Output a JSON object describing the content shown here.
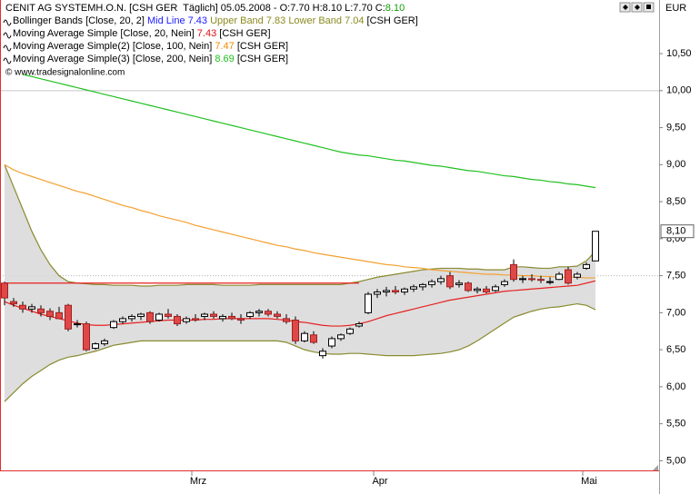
{
  "chart_data": {
    "type": "candlestick",
    "currency": "EUR",
    "legend": [
      {
        "parts": [
          {
            "text": "CENIT AG SYSTEMH.O.N. [CSH GER  Täglich] 05.05.2008 - O:7.70 H:8.10 L:7.70 C:",
            "color": "#000000"
          },
          {
            "text": "8.10",
            "color": "#10a010"
          }
        ]
      },
      {
        "parts": [
          {
            "text": "Bollinger Bands [Close, 20, 2] ",
            "color": "#000000"
          },
          {
            "text": "Mid Line 7.43",
            "color": "#1a1aff"
          },
          {
            "text": " Upper Band 7.83 Lower Band 7.04",
            "color": "#8a8a20"
          },
          {
            "text": " [CSH GER]",
            "color": "#000000"
          }
        ]
      },
      {
        "parts": [
          {
            "text": "Moving Average Simple [Close, 20, Nein] ",
            "color": "#000000"
          },
          {
            "text": "7.43",
            "color": "#e01010"
          },
          {
            "text": " [CSH GER]",
            "color": "#000000"
          }
        ]
      },
      {
        "parts": [
          {
            "text": "Moving Average Simple(2) [Close, 100, Nein] ",
            "color": "#000000"
          },
          {
            "text": "7.47",
            "color": "#f08a00"
          },
          {
            "text": " [CSH GER]",
            "color": "#000000"
          }
        ]
      },
      {
        "parts": [
          {
            "text": "Moving Average Simple(3) [Close, 200, Nein] ",
            "color": "#000000"
          },
          {
            "text": "8.69",
            "color": "#20c020"
          },
          {
            "text": " [CSH GER]",
            "color": "#000000"
          }
        ]
      }
    ],
    "copyright": "© www.tradesignalonline.com",
    "categories": [
      null,
      null,
      null,
      null,
      null,
      null,
      null,
      null,
      null,
      null,
      null,
      null,
      null,
      null,
      null,
      null,
      null,
      null,
      null,
      null,
      null,
      "Mrz",
      null,
      null,
      null,
      null,
      null,
      null,
      null,
      null,
      null,
      null,
      null,
      null,
      null,
      null,
      null,
      null,
      null,
      null,
      null,
      "Apr",
      null,
      null,
      null,
      null,
      null,
      null,
      null,
      null,
      null,
      null,
      null,
      null,
      null,
      null,
      null,
      null,
      null,
      null,
      null,
      null,
      null,
      null,
      "Mai",
      null
    ],
    "open": [
      7.4,
      7.15,
      7.1,
      7.05,
      7.05,
      7.02,
      7.0,
      7.1,
      6.85,
      6.85,
      6.52,
      6.58,
      6.8,
      6.88,
      6.92,
      6.95,
      7.0,
      6.9,
      6.98,
      6.95,
      6.88,
      6.92,
      6.95,
      6.98,
      6.92,
      6.95,
      6.92,
      6.95,
      7.0,
      7.02,
      6.98,
      6.92,
      6.9,
      6.62,
      6.7,
      6.42,
      6.55,
      6.65,
      6.72,
      6.82,
      7.0,
      7.25,
      7.28,
      7.3,
      7.28,
      7.32,
      7.35,
      7.38,
      7.42,
      7.5,
      7.38,
      7.4,
      7.3,
      7.32,
      7.3,
      7.38,
      7.65,
      7.45,
      7.46,
      7.45,
      7.42,
      7.45,
      7.58,
      7.48,
      7.6,
      7.7
    ],
    "high": [
      7.42,
      7.2,
      7.15,
      7.12,
      7.1,
      7.06,
      7.08,
      7.12,
      6.9,
      6.88,
      6.6,
      6.65,
      6.9,
      6.95,
      6.98,
      7.0,
      7.02,
      7.0,
      7.05,
      6.98,
      6.95,
      6.98,
      7.0,
      7.02,
      6.98,
      7.0,
      6.98,
      7.02,
      7.05,
      7.05,
      7.02,
      6.98,
      6.95,
      6.75,
      6.75,
      6.52,
      6.68,
      6.72,
      6.8,
      6.88,
      7.28,
      7.32,
      7.35,
      7.36,
      7.34,
      7.38,
      7.4,
      7.45,
      7.5,
      7.55,
      7.44,
      7.42,
      7.35,
      7.36,
      7.38,
      7.45,
      7.72,
      7.5,
      7.52,
      7.5,
      7.48,
      7.55,
      7.62,
      7.55,
      7.68,
      8.1
    ],
    "low": [
      7.1,
      7.08,
      7.0,
      7.0,
      6.95,
      6.9,
      6.92,
      6.75,
      6.8,
      6.48,
      6.5,
      6.55,
      6.78,
      6.85,
      6.88,
      6.9,
      6.85,
      6.88,
      6.92,
      6.82,
      6.85,
      6.88,
      6.9,
      6.92,
      6.88,
      6.9,
      6.85,
      6.92,
      6.95,
      6.95,
      6.92,
      6.85,
      6.58,
      6.6,
      6.58,
      6.38,
      6.52,
      6.62,
      6.7,
      6.8,
      6.98,
      7.2,
      7.22,
      7.25,
      7.24,
      7.28,
      7.3,
      7.34,
      7.38,
      7.32,
      7.34,
      7.28,
      7.26,
      7.26,
      7.28,
      7.35,
      7.42,
      7.4,
      7.42,
      7.4,
      7.38,
      7.44,
      7.38,
      7.45,
      7.58,
      7.7
    ],
    "close": [
      7.2,
      7.12,
      7.05,
      7.08,
      7.0,
      6.95,
      6.92,
      6.78,
      6.85,
      6.5,
      6.58,
      6.62,
      6.88,
      6.92,
      6.95,
      6.98,
      6.88,
      6.98,
      6.95,
      6.85,
      6.92,
      6.9,
      6.98,
      6.95,
      6.95,
      6.92,
      6.9,
      7.0,
      7.02,
      6.98,
      6.95,
      6.88,
      6.62,
      6.72,
      6.6,
      6.48,
      6.65,
      6.7,
      6.78,
      6.85,
      7.25,
      7.28,
      7.3,
      7.28,
      7.32,
      7.35,
      7.38,
      7.42,
      7.46,
      7.35,
      7.4,
      7.3,
      7.32,
      7.28,
      7.35,
      7.42,
      7.45,
      7.46,
      7.45,
      7.44,
      7.42,
      7.52,
      7.4,
      7.52,
      7.65,
      8.1
    ],
    "up_color": "#ffffff",
    "down_color": "#e04848",
    "band_color": "#d8d8d8",
    "band": {
      "color": "#8a8a30",
      "upper": [
        9.0,
        8.7,
        8.4,
        8.1,
        7.85,
        7.65,
        7.5,
        7.42,
        7.4,
        7.39,
        7.38,
        7.38,
        7.37,
        7.37,
        7.37,
        7.36,
        7.36,
        7.37,
        7.37,
        7.37,
        7.38,
        7.38,
        7.38,
        7.38,
        7.37,
        7.37,
        7.37,
        7.37,
        7.38,
        7.38,
        7.38,
        7.38,
        7.38,
        7.38,
        7.38,
        7.38,
        7.38,
        7.38,
        7.4,
        7.42,
        7.45,
        7.48,
        7.5,
        7.52,
        7.54,
        7.56,
        7.58,
        7.59,
        7.6,
        7.6,
        7.6,
        7.59,
        7.59,
        7.58,
        7.58,
        7.58,
        7.62,
        7.62,
        7.61,
        7.6,
        7.6,
        7.62,
        7.62,
        7.63,
        7.7,
        7.83
      ],
      "lower": [
        5.8,
        5.92,
        6.04,
        6.14,
        6.22,
        6.3,
        6.36,
        6.4,
        6.42,
        6.45,
        6.48,
        6.52,
        6.56,
        6.58,
        6.6,
        6.62,
        6.62,
        6.62,
        6.62,
        6.62,
        6.62,
        6.62,
        6.62,
        6.62,
        6.62,
        6.62,
        6.62,
        6.62,
        6.62,
        6.62,
        6.62,
        6.6,
        6.55,
        6.5,
        6.47,
        6.45,
        6.44,
        6.44,
        6.45,
        6.45,
        6.44,
        6.43,
        6.42,
        6.42,
        6.42,
        6.42,
        6.43,
        6.44,
        6.45,
        6.47,
        6.5,
        6.55,
        6.62,
        6.7,
        6.78,
        6.86,
        6.94,
        6.98,
        7.02,
        7.05,
        7.07,
        7.08,
        7.1,
        7.12,
        7.1,
        7.04
      ]
    },
    "overlays": [
      {
        "color": "#20c020",
        "values": [
          null,
          null,
          10.22,
          10.19,
          10.16,
          10.13,
          10.1,
          10.07,
          10.04,
          10.01,
          9.98,
          9.95,
          9.92,
          9.89,
          9.86,
          9.83,
          9.8,
          9.77,
          9.74,
          9.71,
          9.68,
          9.65,
          9.62,
          9.59,
          9.56,
          9.53,
          9.5,
          9.47,
          9.44,
          9.41,
          9.38,
          9.35,
          9.32,
          9.29,
          9.26,
          9.23,
          9.2,
          9.17,
          9.15,
          9.13,
          9.12,
          9.1,
          9.08,
          9.06,
          9.05,
          9.03,
          9.01,
          8.99,
          8.98,
          8.96,
          8.94,
          8.92,
          8.91,
          8.89,
          8.87,
          8.85,
          8.84,
          8.82,
          8.8,
          8.79,
          8.77,
          8.76,
          8.74,
          8.73,
          8.71,
          8.69
        ]
      },
      {
        "color": "#f5a030",
        "values": [
          9.0,
          8.93,
          8.88,
          8.84,
          8.8,
          8.76,
          8.72,
          8.68,
          8.64,
          8.61,
          8.57,
          8.53,
          8.49,
          8.45,
          8.42,
          8.38,
          8.35,
          8.31,
          8.28,
          8.25,
          8.22,
          8.18,
          8.15,
          8.12,
          8.09,
          8.06,
          8.03,
          8.0,
          7.97,
          7.94,
          7.91,
          7.89,
          7.86,
          7.84,
          7.81,
          7.79,
          7.77,
          7.75,
          7.73,
          7.71,
          7.69,
          7.67,
          7.65,
          7.64,
          7.62,
          7.61,
          7.6,
          7.58,
          7.57,
          7.56,
          7.55,
          7.54,
          7.53,
          7.52,
          7.52,
          7.51,
          7.51,
          7.5,
          7.5,
          7.49,
          7.49,
          7.48,
          7.48,
          7.48,
          7.47,
          7.47
        ]
      },
      {
        "color": "#e82020",
        "values": [
          7.15,
          7.1,
          7.06,
          7.02,
          6.98,
          6.95,
          6.92,
          6.89,
          6.86,
          6.84,
          6.83,
          6.83,
          6.84,
          6.85,
          6.86,
          6.87,
          6.88,
          6.89,
          6.9,
          6.9,
          6.9,
          6.9,
          6.91,
          6.91,
          6.92,
          6.92,
          6.92,
          6.92,
          6.92,
          6.92,
          6.91,
          6.9,
          6.88,
          6.87,
          6.85,
          6.83,
          6.82,
          6.82,
          6.83,
          6.85,
          6.88,
          6.92,
          6.96,
          6.99,
          7.02,
          7.05,
          7.08,
          7.11,
          7.14,
          7.17,
          7.19,
          7.21,
          7.23,
          7.25,
          7.27,
          7.29,
          7.3,
          7.31,
          7.32,
          7.33,
          7.34,
          7.35,
          7.36,
          7.37,
          7.4,
          7.43
        ]
      },
      {
        "color": "#e82020",
        "values": [
          7.4,
          7.4,
          7.4,
          7.4,
          7.4,
          7.4,
          7.4,
          7.4,
          7.4,
          7.4,
          7.4,
          7.4,
          7.4,
          7.4,
          7.4,
          7.4,
          7.4,
          7.4,
          7.4,
          7.4,
          7.4,
          7.4,
          7.4,
          7.4,
          7.4,
          7.4,
          7.4,
          7.4,
          7.4,
          7.4,
          7.4,
          7.4,
          7.4,
          7.4,
          7.4,
          7.4,
          7.4,
          7.4,
          7.4,
          7.4,
          null,
          null,
          null,
          null,
          null,
          null,
          null,
          null,
          null,
          null,
          null,
          null,
          null,
          null,
          null,
          null,
          null,
          null,
          null,
          null,
          null,
          null,
          null,
          null,
          null,
          null
        ]
      }
    ],
    "hlines": [
      {
        "value": 10.0,
        "color": "#c8c8c8"
      },
      {
        "value": 7.5,
        "color": "#b0b0b0"
      }
    ],
    "last_price": {
      "value": 8.1,
      "label": "8,10"
    },
    "ylim": [
      4.87,
      11.2
    ],
    "yticks": [
      {
        "value": 5.0,
        "label": "5,00"
      },
      {
        "value": 5.5,
        "label": "5,50"
      },
      {
        "value": 6.0,
        "label": "6,00"
      },
      {
        "value": 6.5,
        "label": "6,50"
      },
      {
        "value": 7.0,
        "label": "7,00"
      },
      {
        "value": 7.5,
        "label": "7,50"
      },
      {
        "value": 8.0,
        "label": "8,00"
      },
      {
        "value": 8.5,
        "label": "8,50"
      },
      {
        "value": 9.0,
        "label": "9,00"
      },
      {
        "value": 9.5,
        "label": "9,50"
      },
      {
        "value": 10.0,
        "label": "10,00"
      },
      {
        "value": 10.5,
        "label": "10,50"
      }
    ]
  }
}
